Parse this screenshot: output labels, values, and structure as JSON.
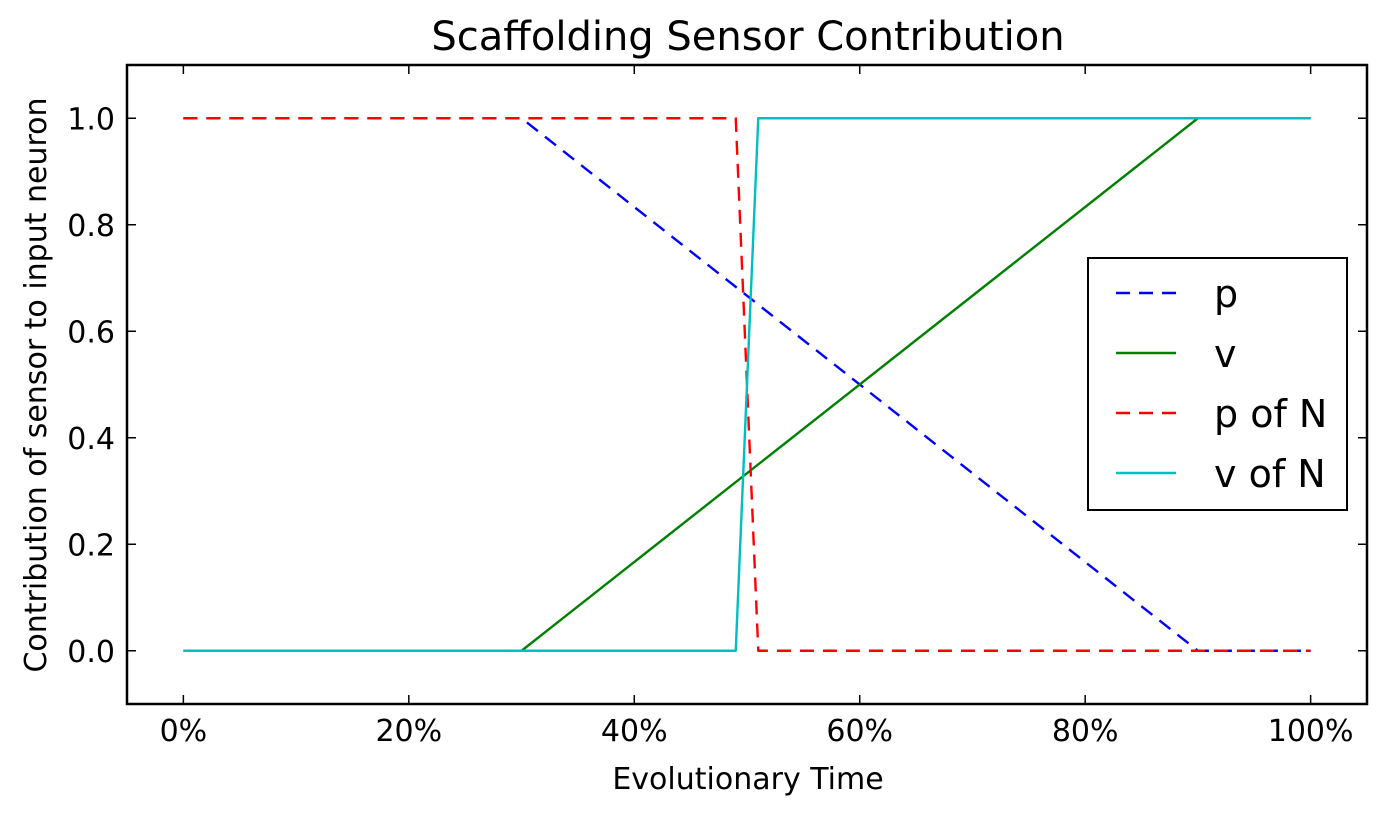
{
  "chart_data": {
    "type": "line",
    "title": "Scaffolding Sensor Contribution",
    "xlabel": "Evolutionary Time",
    "ylabel": "Contribution of sensor to input neuron",
    "xlim": [
      -0.05,
      1.05
    ],
    "ylim": [
      -0.1,
      1.1
    ],
    "xticks": [
      0,
      0.2,
      0.4,
      0.6,
      0.8,
      1.0
    ],
    "xtick_labels": [
      "0%",
      "20%",
      "40%",
      "60%",
      "80%",
      "100%"
    ],
    "yticks": [
      0.0,
      0.2,
      0.4,
      0.6,
      0.8,
      1.0
    ],
    "ytick_labels": [
      "0.0",
      "0.2",
      "0.4",
      "0.6",
      "0.8",
      "1.0"
    ],
    "grid": false,
    "legend_position": "right",
    "series": [
      {
        "name": "p",
        "color": "#0000ff",
        "style": "dashed",
        "x": [
          0.0,
          0.3,
          0.9,
          1.0
        ],
        "y": [
          1.0,
          1.0,
          0.0,
          0.0
        ]
      },
      {
        "name": "v",
        "color": "#008000",
        "style": "solid",
        "x": [
          0.0,
          0.3,
          0.9,
          1.0
        ],
        "y": [
          0.0,
          0.0,
          1.0,
          1.0
        ]
      },
      {
        "name": "p of N",
        "color": "#ff0000",
        "style": "dashed",
        "x": [
          0.0,
          0.49,
          0.51,
          1.0
        ],
        "y": [
          1.0,
          1.0,
          0.0,
          0.0
        ]
      },
      {
        "name": "v of N",
        "color": "#00bfbf",
        "style": "solid",
        "x": [
          0.0,
          0.49,
          0.51,
          1.0
        ],
        "y": [
          0.0,
          0.0,
          1.0,
          1.0
        ]
      }
    ]
  }
}
